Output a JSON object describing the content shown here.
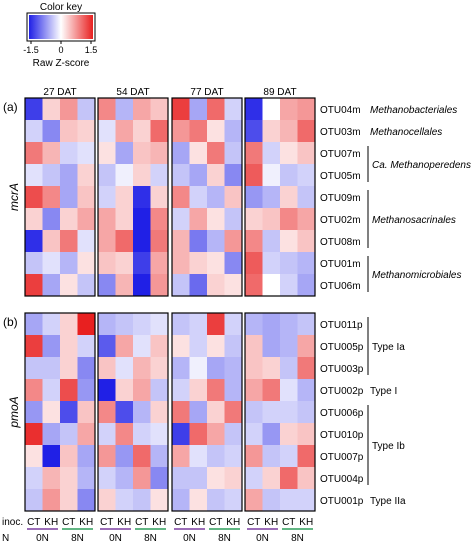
{
  "chart_data": {
    "type": "heatmap",
    "color_key": {
      "title": "Color key",
      "xlabel": "Raw Z-score",
      "ticks": [
        "-1.5",
        "0",
        "1.5"
      ],
      "range": [
        -1.5,
        1.5
      ],
      "colors": {
        "low": "#2020e6",
        "mid": "#ffffff",
        "high": "#e82020"
      }
    },
    "time_points": [
      "27 DAT",
      "54 DAT",
      "77 DAT",
      "89 DAT"
    ],
    "columns": {
      "inoculation": [
        "CT",
        "KH",
        "CT",
        "KH"
      ],
      "nitrogen": [
        "0N",
        "8N"
      ],
      "row_labels": {
        "inoculation": "inoc.",
        "nitrogen": "N"
      },
      "colors": {
        "CT": "#e8871e",
        "KH": "#1f8fb3",
        "0N": "#7b3fa0",
        "8N": "#2e9e5b"
      }
    },
    "panels": [
      {
        "label": "(a)",
        "gene": "mcrA",
        "rows": [
          "OTU04m",
          "OTU03m",
          "OTU07m",
          "OTU05m",
          "OTU09m",
          "OTU02m",
          "OTU08m",
          "OTU01m",
          "OTU06m"
        ],
        "groups": [
          {
            "name": "Methanobacteriales",
            "italic": true,
            "rows": [
              "OTU04m"
            ]
          },
          {
            "name": "Methanocellales",
            "italic": true,
            "rows": [
              "OTU03m"
            ]
          },
          {
            "name_prefix": "Ca.",
            "name": " Methanoperedens",
            "italic": true,
            "rows": [
              "OTU07m",
              "OTU05m"
            ]
          },
          {
            "name": "Methanosacrinales",
            "italic": true,
            "rows": [
              "OTU09m",
              "OTU02m",
              "OTU08m"
            ]
          },
          {
            "name": "Methanomicrobiales",
            "italic": true,
            "rows": [
              "OTU01m",
              "OTU06m"
            ]
          }
        ],
        "values": [
          [
            [
              -1.3,
              0.3,
              0.7,
              -0.4
            ],
            [
              0.8,
              -0.5,
              0.6,
              0.4
            ],
            [
              1.3,
              -0.6,
              1.0,
              -0.3
            ],
            [
              -1.4,
              0.0,
              0.6,
              0.7
            ]
          ],
          [
            [
              -0.3,
              -0.8,
              0.4,
              0.3
            ],
            [
              -0.2,
              0.6,
              0.3,
              1.0
            ],
            [
              0.7,
              0.9,
              0.2,
              -0.5
            ],
            [
              -1.2,
              0.3,
              0.5,
              1.0
            ]
          ],
          [
            [
              0.9,
              0.5,
              -0.3,
              -0.2
            ],
            [
              0.2,
              -0.6,
              0.4,
              0.5
            ],
            [
              -0.6,
              0.2,
              0.9,
              -0.4
            ],
            [
              0.9,
              -0.3,
              0.2,
              0.4
            ]
          ],
          [
            [
              -0.2,
              -0.4,
              -0.6,
              0.3
            ],
            [
              -0.4,
              -0.1,
              0.3,
              -0.3
            ],
            [
              -0.4,
              -0.6,
              0.3,
              -0.8
            ],
            [
              1.1,
              -0.1,
              -0.4,
              -0.3
            ]
          ],
          [
            [
              1.2,
              0.8,
              -0.6,
              0.4
            ],
            [
              -0.3,
              0.3,
              -1.4,
              0.3
            ],
            [
              0.8,
              -0.3,
              -0.5,
              0.4
            ],
            [
              -0.7,
              -0.5,
              0.3,
              -0.4
            ]
          ],
          [
            [
              0.3,
              -0.8,
              0.3,
              0.6
            ],
            [
              0.6,
              0.3,
              -1.5,
              0.8
            ],
            [
              -0.3,
              0.6,
              0.2,
              -0.4
            ],
            [
              0.3,
              0.4,
              0.8,
              0.6
            ]
          ],
          [
            [
              -1.4,
              0.4,
              0.9,
              -0.2
            ],
            [
              0.6,
              1.0,
              -1.5,
              0.9
            ],
            [
              0.5,
              -0.9,
              -0.5,
              0.7
            ],
            [
              0.8,
              -0.4,
              0.2,
              0.4
            ]
          ],
          [
            [
              -0.4,
              -0.2,
              -0.5,
              0.2
            ],
            [
              0.4,
              0.3,
              -1.3,
              0.6
            ],
            [
              0.5,
              0.3,
              0.2,
              -0.8
            ],
            [
              1.1,
              -0.3,
              -0.4,
              -0.5
            ]
          ],
          [
            [
              1.3,
              -0.6,
              0.2,
              -0.4
            ],
            [
              -0.8,
              0.5,
              -1.5,
              0.7
            ],
            [
              -0.4,
              -1.0,
              0.3,
              0.2
            ],
            [
              1.0,
              0.0,
              -0.3,
              -0.6
            ]
          ]
        ]
      },
      {
        "label": "(b)",
        "gene": "pmoA",
        "rows": [
          "OTU011p",
          "OTU005p",
          "OTU003p",
          "OTU002p",
          "OTU006p",
          "OTU010p",
          "OTU007p",
          "OTU004p",
          "OTU001p"
        ],
        "groups": [
          {
            "name": "Type Ia",
            "italic": false,
            "rows": [
              "OTU011p",
              "OTU005p",
              "OTU003p"
            ]
          },
          {
            "name": "Type I",
            "italic": false,
            "rows": [
              "OTU002p"
            ]
          },
          {
            "name": "Type Ib",
            "italic": false,
            "rows": [
              "OTU006p",
              "OTU010p",
              "OTU007p",
              "OTU004p"
            ]
          },
          {
            "name": "Type IIa",
            "italic": false,
            "rows": [
              "OTU001p"
            ]
          }
        ],
        "values": [
          [
            [
              -0.6,
              -0.3,
              0.3,
              1.5
            ],
            [
              -0.5,
              -0.4,
              -0.3,
              -0.2
            ],
            [
              -0.4,
              -0.3,
              1.3,
              -0.3
            ],
            [
              -0.5,
              -0.6,
              -0.5,
              -0.4
            ]
          ],
          [
            [
              1.3,
              -0.7,
              0.3,
              -0.3
            ],
            [
              -1.1,
              0.6,
              -0.2,
              0.4
            ],
            [
              0.2,
              -0.3,
              0.2,
              -0.4
            ],
            [
              0.4,
              -0.6,
              -0.5,
              0.6
            ]
          ],
          [
            [
              -0.4,
              -0.4,
              0.3,
              -0.8
            ],
            [
              0.4,
              -0.2,
              0.5,
              0.3
            ],
            [
              -0.5,
              -0.1,
              -0.6,
              -0.5
            ],
            [
              0.4,
              0.3,
              -0.4,
              0.9
            ]
          ],
          [
            [
              0.8,
              -0.3,
              1.2,
              -0.7
            ],
            [
              -1.5,
              0.3,
              0.6,
              -0.4
            ],
            [
              -0.3,
              0.3,
              0.9,
              -0.5
            ],
            [
              0.6,
              0.9,
              -0.2,
              -0.5
            ]
          ],
          [
            [
              -0.7,
              0.2,
              -1.2,
              0.4
            ],
            [
              0.8,
              -1.2,
              -0.5,
              0.3
            ],
            [
              0.9,
              -0.6,
              0.3,
              0.9
            ],
            [
              -0.4,
              -0.3,
              -0.3,
              -0.4
            ]
          ],
          [
            [
              1.4,
              -0.6,
              -0.4,
              0.6
            ],
            [
              -0.3,
              0.8,
              -0.3,
              -0.2
            ],
            [
              -1.3,
              1.0,
              0.6,
              -0.4
            ],
            [
              -0.3,
              -0.7,
              0.3,
              0.4
            ]
          ],
          [
            [
              0.2,
              -1.5,
              0.4,
              -0.6
            ],
            [
              0.7,
              -0.7,
              1.0,
              -0.5
            ],
            [
              0.6,
              -0.2,
              -0.4,
              -0.3
            ],
            [
              0.7,
              -0.4,
              -0.3,
              1.0
            ]
          ],
          [
            [
              -0.3,
              0.5,
              0.3,
              -0.5
            ],
            [
              -0.3,
              -0.5,
              0.7,
              -0.8
            ],
            [
              -0.4,
              -0.4,
              0.2,
              0.3
            ],
            [
              -0.3,
              0.3,
              1.0,
              0.4
            ]
          ],
          [
            [
              -0.4,
              0.7,
              0.3,
              -0.8
            ],
            [
              0.3,
              -0.3,
              -0.4,
              0.2
            ],
            [
              -0.5,
              0.2,
              -0.4,
              -0.3
            ],
            [
              0.6,
              -0.4,
              -0.3,
              -0.3
            ]
          ]
        ]
      }
    ]
  }
}
